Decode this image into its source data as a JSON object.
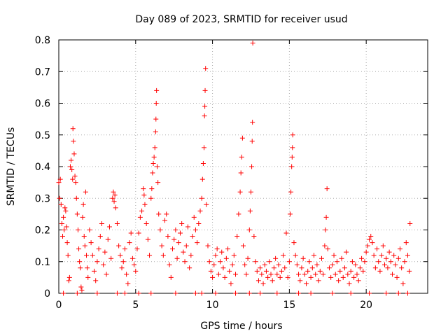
{
  "chart_data": {
    "type": "scatter",
    "title": "Day 089 of 2023, SRMTID for receiver usud",
    "xlabel": "GPS time / hours",
    "ylabel": "SRMTID / TECUs",
    "xlim": [
      0,
      24
    ],
    "ylim": [
      0,
      0.8
    ],
    "x_ticks": [
      0,
      5,
      10,
      15,
      20
    ],
    "y_ticks": [
      0,
      0.1,
      0.2,
      0.3,
      0.4,
      0.5,
      0.6,
      0.7,
      0.8
    ],
    "x_tick_labels": [
      "0",
      "5",
      "10",
      "15",
      "20"
    ],
    "y_tick_labels": [
      "0",
      "0.1",
      "0.2",
      "0.3",
      "0.4",
      "0.5",
      "0.6",
      "0.7",
      "0.8"
    ],
    "grid": true,
    "marker": "+",
    "color": "#ff0000",
    "series": [
      {
        "name": "SRMTID",
        "points": [
          [
            0.0,
            0.35
          ],
          [
            0.05,
            0.3
          ],
          [
            0.1,
            0.36
          ],
          [
            0.15,
            0.28
          ],
          [
            0.2,
            0.22
          ],
          [
            0.25,
            0.18
          ],
          [
            0.3,
            0.24
          ],
          [
            0.35,
            0.2
          ],
          [
            0.4,
            0.27
          ],
          [
            0.45,
            0.26
          ],
          [
            0.5,
            0.21
          ],
          [
            0.55,
            0.16
          ],
          [
            0.6,
            0.12
          ],
          [
            0.65,
            0.04
          ],
          [
            0.7,
            0.05
          ],
          [
            0.75,
            0.4
          ],
          [
            0.8,
            0.42
          ],
          [
            0.85,
            0.39
          ],
          [
            0.9,
            0.36
          ],
          [
            0.92,
            0.52
          ],
          [
            0.95,
            0.48
          ],
          [
            1.0,
            0.44
          ],
          [
            1.05,
            0.37
          ],
          [
            1.1,
            0.35
          ],
          [
            1.15,
            0.3
          ],
          [
            1.2,
            0.25
          ],
          [
            1.25,
            0.2
          ],
          [
            1.3,
            0.14
          ],
          [
            1.35,
            0.1
          ],
          [
            1.4,
            0.08
          ],
          [
            1.45,
            0.02
          ],
          [
            1.5,
            0.01
          ],
          [
            1.55,
            0.24
          ],
          [
            1.6,
            0.28
          ],
          [
            1.65,
            0.18
          ],
          [
            1.7,
            0.15
          ],
          [
            1.75,
            0.32
          ],
          [
            1.8,
            0.12
          ],
          [
            1.85,
            0.08
          ],
          [
            1.9,
            0.05
          ],
          [
            2.0,
            0.2
          ],
          [
            2.1,
            0.16
          ],
          [
            2.2,
            0.12
          ],
          [
            2.3,
            0.07
          ],
          [
            2.4,
            0.04
          ],
          [
            2.5,
            0.1
          ],
          [
            2.6,
            0.14
          ],
          [
            2.7,
            0.18
          ],
          [
            2.8,
            0.22
          ],
          [
            2.9,
            0.09
          ],
          [
            3.0,
            0.13
          ],
          [
            3.1,
            0.06
          ],
          [
            3.2,
            0.17
          ],
          [
            3.3,
            0.21
          ],
          [
            3.4,
            0.11
          ],
          [
            3.5,
            0.3
          ],
          [
            3.55,
            0.32
          ],
          [
            3.6,
            0.29
          ],
          [
            3.65,
            0.31
          ],
          [
            3.7,
            0.27
          ],
          [
            3.8,
            0.22
          ],
          [
            3.9,
            0.15
          ],
          [
            4.0,
            0.12
          ],
          [
            4.1,
            0.08
          ],
          [
            4.2,
            0.1
          ],
          [
            4.3,
            0.14
          ],
          [
            4.4,
            0.06
          ],
          [
            4.5,
            0.03
          ],
          [
            4.6,
            0.16
          ],
          [
            4.7,
            0.19
          ],
          [
            4.8,
            0.11
          ],
          [
            4.9,
            0.09
          ],
          [
            5.0,
            0.07
          ],
          [
            5.1,
            0.14
          ],
          [
            5.2,
            0.19
          ],
          [
            5.3,
            0.24
          ],
          [
            5.4,
            0.26
          ],
          [
            5.5,
            0.33
          ],
          [
            5.55,
            0.31
          ],
          [
            5.6,
            0.28
          ],
          [
            5.7,
            0.22
          ],
          [
            5.8,
            0.17
          ],
          [
            5.9,
            0.12
          ],
          [
            6.0,
            0.3
          ],
          [
            6.05,
            0.33
          ],
          [
            6.1,
            0.38
          ],
          [
            6.15,
            0.41
          ],
          [
            6.2,
            0.43
          ],
          [
            6.25,
            0.46
          ],
          [
            6.3,
            0.51
          ],
          [
            6.32,
            0.55
          ],
          [
            6.34,
            0.6
          ],
          [
            6.36,
            0.64
          ],
          [
            6.4,
            0.4
          ],
          [
            6.45,
            0.35
          ],
          [
            6.5,
            0.25
          ],
          [
            6.6,
            0.2
          ],
          [
            6.7,
            0.15
          ],
          [
            6.8,
            0.12
          ],
          [
            6.9,
            0.23
          ],
          [
            7.0,
            0.25
          ],
          [
            7.1,
            0.18
          ],
          [
            7.2,
            0.09
          ],
          [
            7.3,
            0.05
          ],
          [
            7.4,
            0.14
          ],
          [
            7.5,
            0.17
          ],
          [
            7.6,
            0.2
          ],
          [
            7.7,
            0.11
          ],
          [
            7.8,
            0.16
          ],
          [
            7.9,
            0.19
          ],
          [
            8.0,
            0.22
          ],
          [
            8.1,
            0.13
          ],
          [
            8.2,
            0.1
          ],
          [
            8.3,
            0.15
          ],
          [
            8.4,
            0.21
          ],
          [
            8.5,
            0.08
          ],
          [
            8.6,
            0.12
          ],
          [
            8.7,
            0.18
          ],
          [
            8.8,
            0.24
          ],
          [
            8.9,
            0.2
          ],
          [
            9.0,
            0.16
          ],
          [
            9.1,
            0.22
          ],
          [
            9.2,
            0.26
          ],
          [
            9.3,
            0.3
          ],
          [
            9.35,
            0.36
          ],
          [
            9.4,
            0.41
          ],
          [
            9.45,
            0.46
          ],
          [
            9.48,
            0.56
          ],
          [
            9.5,
            0.59
          ],
          [
            9.52,
            0.64
          ],
          [
            9.55,
            0.71
          ],
          [
            9.6,
            0.28
          ],
          [
            9.7,
            0.15
          ],
          [
            9.8,
            0.1
          ],
          [
            9.9,
            0.07
          ],
          [
            10.0,
            0.05
          ],
          [
            10.1,
            0.09
          ],
          [
            10.2,
            0.12
          ],
          [
            10.3,
            0.14
          ],
          [
            10.4,
            0.06
          ],
          [
            10.5,
            0.1
          ],
          [
            10.6,
            0.13
          ],
          [
            10.7,
            0.08
          ],
          [
            10.8,
            0.05
          ],
          [
            10.9,
            0.11
          ],
          [
            11.0,
            0.14
          ],
          [
            11.1,
            0.07
          ],
          [
            11.2,
            0.03
          ],
          [
            11.3,
            0.09
          ],
          [
            11.4,
            0.12
          ],
          [
            11.5,
            0.06
          ],
          [
            11.6,
            0.18
          ],
          [
            11.7,
            0.25
          ],
          [
            11.8,
            0.32
          ],
          [
            11.85,
            0.38
          ],
          [
            11.9,
            0.43
          ],
          [
            11.95,
            0.49
          ],
          [
            12.0,
            0.15
          ],
          [
            12.1,
            0.09
          ],
          [
            12.2,
            0.06
          ],
          [
            12.3,
            0.11
          ],
          [
            12.4,
            0.2
          ],
          [
            12.45,
            0.26
          ],
          [
            12.5,
            0.32
          ],
          [
            12.55,
            0.4
          ],
          [
            12.58,
            0.48
          ],
          [
            12.6,
            0.54
          ],
          [
            12.62,
            0.79
          ],
          [
            12.7,
            0.18
          ],
          [
            12.8,
            0.1
          ],
          [
            12.9,
            0.07
          ],
          [
            13.0,
            0.04
          ],
          [
            13.1,
            0.08
          ],
          [
            13.2,
            0.06
          ],
          [
            13.3,
            0.03
          ],
          [
            13.4,
            0.09
          ],
          [
            13.5,
            0.07
          ],
          [
            13.6,
            0.05
          ],
          [
            13.7,
            0.1
          ],
          [
            13.8,
            0.06
          ],
          [
            13.9,
            0.04
          ],
          [
            14.0,
            0.08
          ],
          [
            14.1,
            0.11
          ],
          [
            14.2,
            0.06
          ],
          [
            14.3,
            0.09
          ],
          [
            14.4,
            0.05
          ],
          [
            14.5,
            0.07
          ],
          [
            14.6,
            0.12
          ],
          [
            14.7,
            0.08
          ],
          [
            14.8,
            0.19
          ],
          [
            14.9,
            0.05
          ],
          [
            15.0,
            0.1
          ],
          [
            15.05,
            0.25
          ],
          [
            15.1,
            0.32
          ],
          [
            15.15,
            0.4
          ],
          [
            15.18,
            0.43
          ],
          [
            15.2,
            0.46
          ],
          [
            15.22,
            0.5
          ],
          [
            15.3,
            0.16
          ],
          [
            15.4,
            0.12
          ],
          [
            15.5,
            0.09
          ],
          [
            15.6,
            0.06
          ],
          [
            15.7,
            0.04
          ],
          [
            15.8,
            0.08
          ],
          [
            15.9,
            0.11
          ],
          [
            16.0,
            0.06
          ],
          [
            16.1,
            0.03
          ],
          [
            16.2,
            0.07
          ],
          [
            16.3,
            0.1
          ],
          [
            16.4,
            0.05
          ],
          [
            16.5,
            0.08
          ],
          [
            16.6,
            0.12
          ],
          [
            16.7,
            0.06
          ],
          [
            16.8,
            0.09
          ],
          [
            16.9,
            0.04
          ],
          [
            17.0,
            0.07
          ],
          [
            17.1,
            0.11
          ],
          [
            17.2,
            0.06
          ],
          [
            17.3,
            0.15
          ],
          [
            17.35,
            0.2
          ],
          [
            17.4,
            0.24
          ],
          [
            17.45,
            0.33
          ],
          [
            17.5,
            0.14
          ],
          [
            17.6,
            0.08
          ],
          [
            17.7,
            0.05
          ],
          [
            17.8,
            0.09
          ],
          [
            17.9,
            0.12
          ],
          [
            18.0,
            0.06
          ],
          [
            18.1,
            0.1
          ],
          [
            18.2,
            0.04
          ],
          [
            18.3,
            0.07
          ],
          [
            18.4,
            0.11
          ],
          [
            18.5,
            0.05
          ],
          [
            18.6,
            0.08
          ],
          [
            18.7,
            0.13
          ],
          [
            18.8,
            0.06
          ],
          [
            18.9,
            0.03
          ],
          [
            19.0,
            0.07
          ],
          [
            19.1,
            0.1
          ],
          [
            19.2,
            0.05
          ],
          [
            19.3,
            0.09
          ],
          [
            19.4,
            0.06
          ],
          [
            19.5,
            0.04
          ],
          [
            19.6,
            0.08
          ],
          [
            19.7,
            0.11
          ],
          [
            19.8,
            0.07
          ],
          [
            19.9,
            0.1
          ],
          [
            20.0,
            0.13
          ],
          [
            20.1,
            0.15
          ],
          [
            20.2,
            0.17
          ],
          [
            20.3,
            0.18
          ],
          [
            20.4,
            0.16
          ],
          [
            20.5,
            0.12
          ],
          [
            20.6,
            0.08
          ],
          [
            20.7,
            0.14
          ],
          [
            20.8,
            0.1
          ],
          [
            20.9,
            0.07
          ],
          [
            21.0,
            0.12
          ],
          [
            21.1,
            0.15
          ],
          [
            21.2,
            0.09
          ],
          [
            21.3,
            0.11
          ],
          [
            21.4,
            0.08
          ],
          [
            21.5,
            0.13
          ],
          [
            21.6,
            0.1
          ],
          [
            21.7,
            0.06
          ],
          [
            21.8,
            0.12
          ],
          [
            21.9,
            0.09
          ],
          [
            22.0,
            0.05
          ],
          [
            22.1,
            0.11
          ],
          [
            22.2,
            0.14
          ],
          [
            22.3,
            0.08
          ],
          [
            22.4,
            0.03
          ],
          [
            22.5,
            0.1
          ],
          [
            22.6,
            0.16
          ],
          [
            22.7,
            0.12
          ],
          [
            22.8,
            0.07
          ],
          [
            22.85,
            0.22
          ],
          [
            0.3,
            0.0
          ],
          [
            1.2,
            0.0
          ],
          [
            2.5,
            0.0
          ],
          [
            3.8,
            0.0
          ],
          [
            4.3,
            0.0
          ],
          [
            5.2,
            0.0
          ],
          [
            6.0,
            0.0
          ],
          [
            7.6,
            0.0
          ],
          [
            8.9,
            0.0
          ],
          [
            9.3,
            0.0
          ],
          [
            10.2,
            0.0
          ],
          [
            11.5,
            0.0
          ],
          [
            12.4,
            0.0
          ],
          [
            13.1,
            0.0
          ],
          [
            14.2,
            0.0
          ],
          [
            15.6,
            0.0
          ],
          [
            16.4,
            0.0
          ],
          [
            17.8,
            0.0
          ],
          [
            19.0,
            0.0
          ],
          [
            20.2,
            0.0
          ],
          [
            21.3,
            0.0
          ],
          [
            22.1,
            0.0
          ],
          [
            22.7,
            0.0
          ]
        ]
      }
    ]
  }
}
